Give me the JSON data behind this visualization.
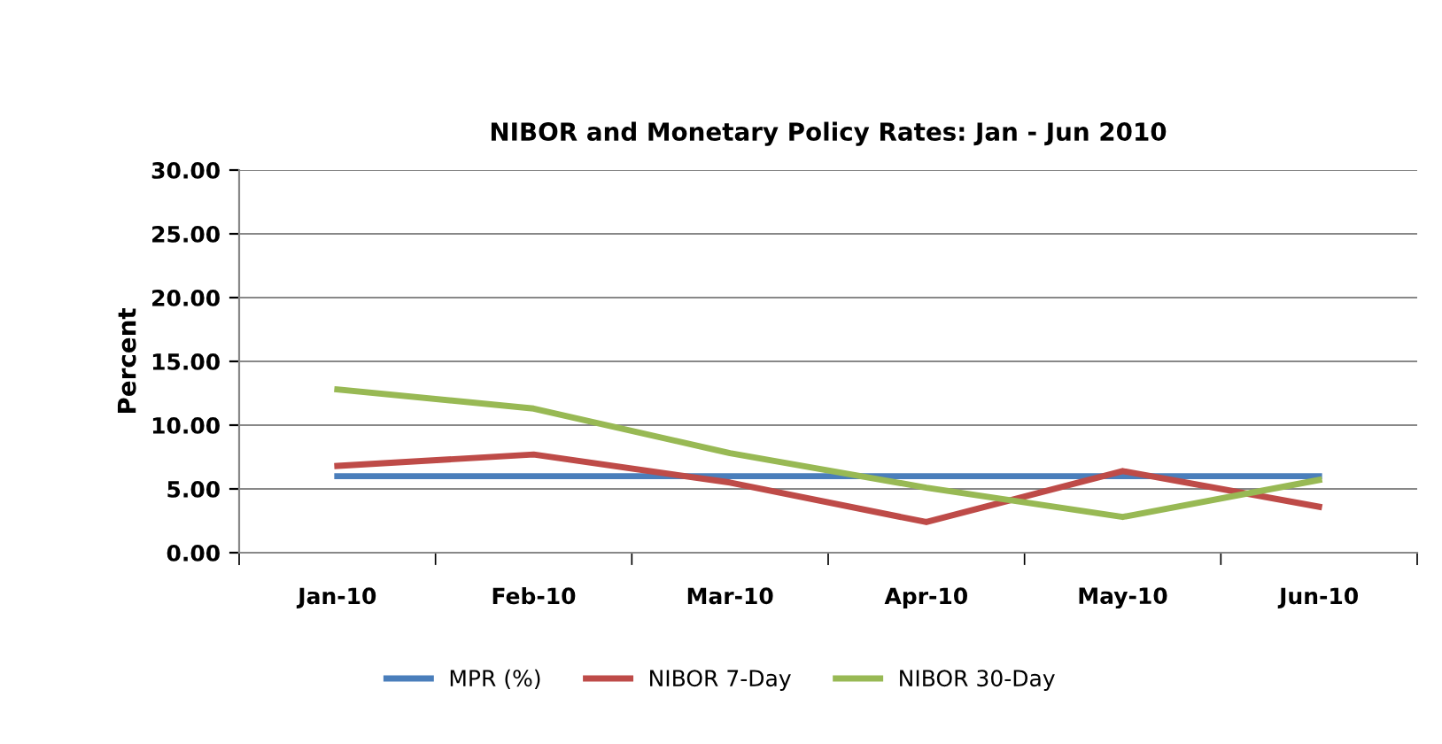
{
  "chart_data": {
    "type": "line",
    "title": "NIBOR and Monetary Policy Rates: Jan - Jun 2010",
    "ylabel": "Percent",
    "categories": [
      "Jan-10",
      "Feb-10",
      "Mar-10",
      "Apr-10",
      "May-10",
      "Jun-10"
    ],
    "series": [
      {
        "name": "MPR (%)",
        "color": "#4a7ebb",
        "values": [
          6.0,
          6.0,
          6.0,
          6.0,
          6.0,
          6.0
        ]
      },
      {
        "name": "NIBOR 7-Day",
        "color": "#be4b48",
        "values": [
          6.8,
          7.7,
          5.5,
          2.4,
          6.4,
          3.6
        ]
      },
      {
        "name": "NIBOR 30-Day",
        "color": "#98b954",
        "values": [
          12.8,
          11.3,
          7.8,
          5.1,
          2.8,
          5.7
        ]
      }
    ],
    "ylim": [
      0,
      30
    ],
    "yticks": [
      {
        "value": 0,
        "label": "0.00"
      },
      {
        "value": 5,
        "label": "5.00"
      },
      {
        "value": 10,
        "label": "10.00"
      },
      {
        "value": 15,
        "label": "15.00"
      },
      {
        "value": 20,
        "label": "20.00"
      },
      {
        "value": 25,
        "label": "25.00"
      },
      {
        "value": 30,
        "label": "30.00"
      }
    ],
    "grid": "y",
    "legend": "bottom",
    "marker": "none",
    "line_style": "solid"
  }
}
